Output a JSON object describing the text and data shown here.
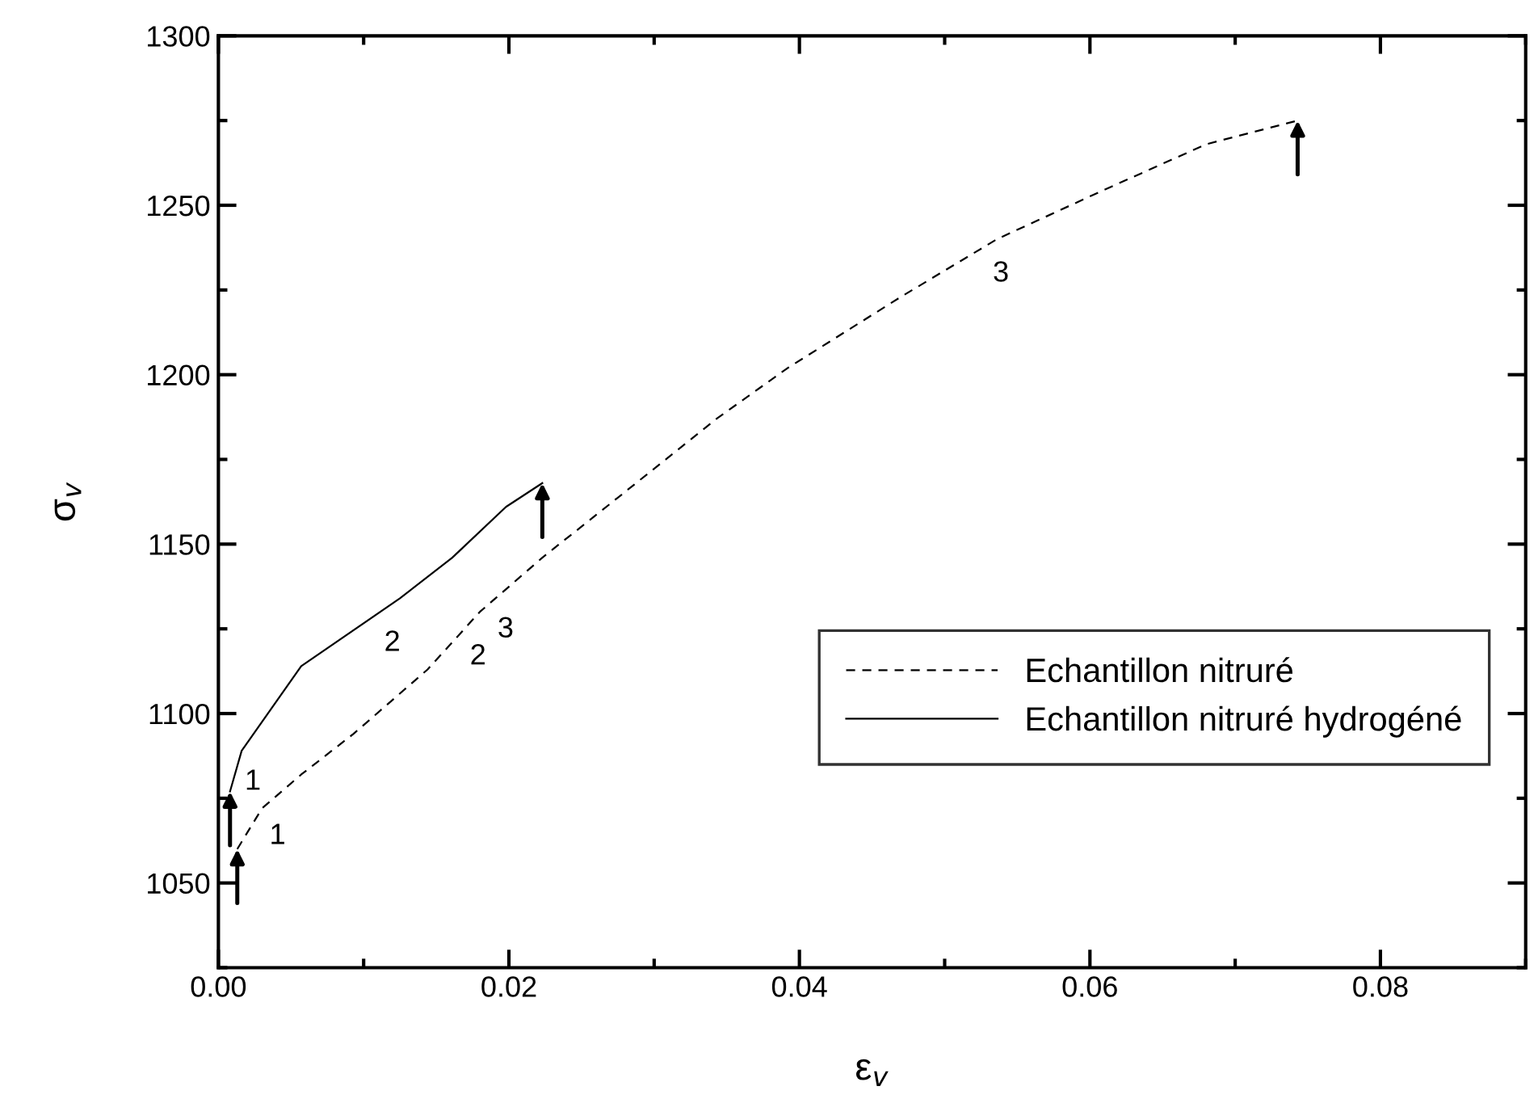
{
  "chart_data": {
    "type": "line",
    "xlabel": "ε$_{v}$",
    "ylabel": "σ$_{v}$",
    "xlim": [
      0,
      0.09
    ],
    "ylim": [
      1025,
      1300
    ],
    "xticks": [
      {
        "value": 0,
        "label": "0.00"
      },
      {
        "value": 0.02,
        "label": "0.02"
      },
      {
        "value": 0.04,
        "label": "0.04"
      },
      {
        "value": 0.06,
        "label": "0.06"
      },
      {
        "value": 0.08,
        "label": "0.08"
      }
    ],
    "yticks": [
      1050,
      1100,
      1150,
      1200,
      1250,
      1300
    ],
    "grid": false,
    "legend": "bottom right",
    "marker": "none",
    "series": [
      {
        "name": "Echantillon nitruré",
        "color": "#000000",
        "line_style": "dashed",
        "x": [
          0.0013,
          0.003,
          0.0057,
          0.0093,
          0.0144,
          0.018,
          0.0223,
          0.027,
          0.0343,
          0.0392,
          0.047,
          0.0536,
          0.0607,
          0.068,
          0.0743
        ],
        "values": [
          1060,
          1072,
          1082,
          1094,
          1113,
          1130,
          1146,
          1162,
          1187,
          1202,
          1223,
          1240,
          1254,
          1268,
          1275
        ]
      },
      {
        "name": "Echantillon nitruré hydrogéné",
        "color": "#000000",
        "line_style": "solid",
        "x": [
          0.0008,
          0.0016,
          0.0057,
          0.0125,
          0.0161,
          0.0198,
          0.0223
        ],
        "values": [
          1077,
          1089,
          1114,
          1134,
          1146,
          1161,
          1168
        ]
      }
    ],
    "annotations": [
      {
        "text": "1",
        "x": 0.0033,
        "y": 1073
      },
      {
        "text": "1",
        "x": 0.0016,
        "y": 1089
      },
      {
        "text": "2",
        "x": 0.0112,
        "y": 1130
      },
      {
        "text": "2",
        "x": 0.0171,
        "y": 1126
      },
      {
        "text": "3",
        "x": 0.019,
        "y": 1134
      },
      {
        "text": "3",
        "x": 0.0531,
        "y": 1239
      }
    ]
  }
}
